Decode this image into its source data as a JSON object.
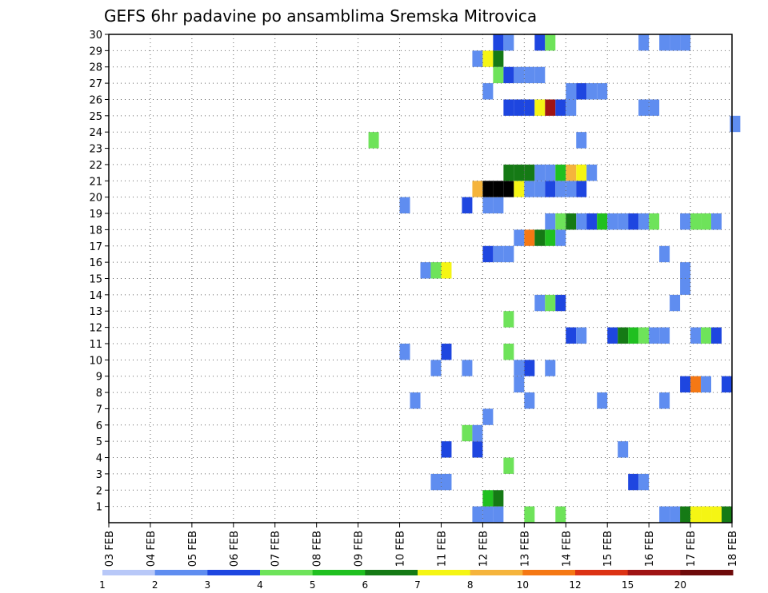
{
  "chart_data": {
    "type": "heatmap",
    "title": "GEFS 6hr padavine po ansamblima Sremska Mitrovica",
    "xlabel": "",
    "ylabel": "",
    "x_ticks": [
      "03 FEB",
      "04 FEB",
      "05 FEB",
      "06 FEB",
      "07 FEB",
      "08 FEB",
      "09 FEB",
      "10 FEB",
      "11 FEB",
      "12 FEB",
      "13 FEB",
      "14 FEB",
      "15 FEB",
      "16 FEB",
      "17 FEB",
      "18 FEB"
    ],
    "x_range_days": [
      0,
      15
    ],
    "y_ticks": [
      1,
      2,
      3,
      4,
      5,
      6,
      7,
      8,
      9,
      10,
      11,
      12,
      13,
      14,
      15,
      16,
      17,
      18,
      19,
      20,
      21,
      22,
      23,
      24,
      25,
      26,
      27,
      28,
      29,
      30
    ],
    "y_range": [
      0,
      30
    ],
    "grid": true,
    "colorbar": {
      "labels": [
        "1",
        "2",
        "3",
        "4",
        "5",
        "6",
        "7",
        "8",
        "10",
        "12",
        "15",
        "20"
      ],
      "colors": [
        "#b8c8f8",
        "#5f8df0",
        "#1e46e0",
        "#6ee35a",
        "#20c020",
        "#157a15",
        "#f5f514",
        "#f5b43c",
        "#f57814",
        "#dc3214",
        "#a01414",
        "#6e0a0a"
      ]
    },
    "cells_note": "each cell = [day_offset_from_03_FEB, ensemble_member, color_class]",
    "cells": [
      [
        8.75,
        0,
        1
      ],
      [
        9.0,
        0,
        1
      ],
      [
        9.25,
        0,
        1
      ],
      [
        10.0,
        0,
        3
      ],
      [
        10.75,
        0,
        3
      ],
      [
        13.25,
        0,
        1
      ],
      [
        13.5,
        0,
        1
      ],
      [
        13.75,
        0,
        5
      ],
      [
        14.0,
        0,
        6
      ],
      [
        14.25,
        0,
        6
      ],
      [
        14.5,
        0,
        6
      ],
      [
        14.75,
        0,
        5
      ],
      [
        9.0,
        1,
        4
      ],
      [
        9.25,
        1,
        5
      ],
      [
        7.75,
        2,
        1
      ],
      [
        8.0,
        2,
        1
      ],
      [
        12.5,
        2,
        2
      ],
      [
        12.75,
        2,
        1
      ],
      [
        9.5,
        3,
        3
      ],
      [
        8.0,
        4,
        2
      ],
      [
        8.75,
        4,
        2
      ],
      [
        12.25,
        4,
        1
      ],
      [
        8.5,
        5,
        3
      ],
      [
        8.75,
        5,
        1
      ],
      [
        9.0,
        6,
        1
      ],
      [
        7.25,
        7,
        1
      ],
      [
        10.0,
        7,
        1
      ],
      [
        11.75,
        7,
        1
      ],
      [
        13.25,
        7,
        1
      ],
      [
        9.75,
        8,
        1
      ],
      [
        13.75,
        8,
        2
      ],
      [
        14.0,
        8,
        8
      ],
      [
        14.25,
        8,
        1
      ],
      [
        14.75,
        8,
        2
      ],
      [
        7.75,
        9,
        1
      ],
      [
        8.5,
        9,
        1
      ],
      [
        9.75,
        9,
        1
      ],
      [
        10.0,
        9,
        2
      ],
      [
        10.5,
        9,
        1
      ],
      [
        7.0,
        10,
        1
      ],
      [
        8.0,
        10,
        2
      ],
      [
        9.5,
        10,
        3
      ],
      [
        11.0,
        11,
        2
      ],
      [
        11.25,
        11,
        1
      ],
      [
        12.0,
        11,
        2
      ],
      [
        12.25,
        11,
        5
      ],
      [
        12.5,
        11,
        4
      ],
      [
        12.75,
        11,
        3
      ],
      [
        13.0,
        11,
        1
      ],
      [
        13.25,
        11,
        1
      ],
      [
        14.0,
        11,
        1
      ],
      [
        14.25,
        11,
        3
      ],
      [
        14.5,
        11,
        2
      ],
      [
        9.5,
        12,
        3
      ],
      [
        10.25,
        13,
        1
      ],
      [
        10.5,
        13,
        3
      ],
      [
        10.75,
        13,
        2
      ],
      [
        13.5,
        13,
        1
      ],
      [
        13.75,
        14,
        1
      ],
      [
        7.5,
        15,
        1
      ],
      [
        7.75,
        15,
        3
      ],
      [
        8.0,
        15,
        6
      ],
      [
        13.75,
        15,
        1
      ],
      [
        9.0,
        16,
        2
      ],
      [
        9.25,
        16,
        1
      ],
      [
        9.5,
        16,
        1
      ],
      [
        13.25,
        16,
        1
      ],
      [
        9.75,
        17,
        1
      ],
      [
        10.0,
        17,
        8
      ],
      [
        10.25,
        17,
        5
      ],
      [
        10.5,
        17,
        4
      ],
      [
        10.75,
        17,
        1
      ],
      [
        10.5,
        18,
        1
      ],
      [
        10.75,
        18,
        3
      ],
      [
        11.0,
        18,
        5
      ],
      [
        11.25,
        18,
        1
      ],
      [
        11.5,
        18,
        2
      ],
      [
        11.75,
        18,
        4
      ],
      [
        12.0,
        18,
        1
      ],
      [
        12.25,
        18,
        1
      ],
      [
        12.5,
        18,
        2
      ],
      [
        12.75,
        18,
        1
      ],
      [
        13.0,
        18,
        3
      ],
      [
        13.75,
        18,
        1
      ],
      [
        14.0,
        18,
        3
      ],
      [
        14.25,
        18,
        3
      ],
      [
        14.5,
        18,
        1
      ],
      [
        7.0,
        19,
        1
      ],
      [
        8.5,
        19,
        2
      ],
      [
        9.0,
        19,
        1
      ],
      [
        9.25,
        19,
        1
      ],
      [
        8.75,
        20,
        7
      ],
      [
        9.0,
        20,
        12
      ],
      [
        9.25,
        20,
        12
      ],
      [
        9.5,
        20,
        12
      ],
      [
        9.75,
        20,
        6
      ],
      [
        10.0,
        20,
        1
      ],
      [
        10.25,
        20,
        1
      ],
      [
        10.5,
        20,
        2
      ],
      [
        10.75,
        20,
        1
      ],
      [
        11.0,
        20,
        1
      ],
      [
        11.25,
        20,
        2
      ],
      [
        9.5,
        21,
        5
      ],
      [
        9.75,
        21,
        5
      ],
      [
        10.0,
        21,
        5
      ],
      [
        10.25,
        21,
        1
      ],
      [
        10.5,
        21,
        1
      ],
      [
        10.75,
        21,
        4
      ],
      [
        11.0,
        21,
        7
      ],
      [
        11.25,
        21,
        6
      ],
      [
        11.5,
        21,
        1
      ],
      [
        6.25,
        23,
        3
      ],
      [
        11.25,
        23,
        1
      ],
      [
        14.95,
        24,
        1
      ],
      [
        9.5,
        25,
        2
      ],
      [
        9.75,
        25,
        2
      ],
      [
        10.0,
        25,
        2
      ],
      [
        10.25,
        25,
        6
      ],
      [
        10.5,
        25,
        10
      ],
      [
        10.75,
        25,
        2
      ],
      [
        11.0,
        25,
        1
      ],
      [
        12.75,
        25,
        1
      ],
      [
        13.0,
        25,
        1
      ],
      [
        9.0,
        26,
        1
      ],
      [
        11.0,
        26,
        1
      ],
      [
        11.25,
        26,
        2
      ],
      [
        11.5,
        26,
        1
      ],
      [
        11.75,
        26,
        1
      ],
      [
        9.25,
        27,
        3
      ],
      [
        9.5,
        27,
        2
      ],
      [
        9.75,
        27,
        1
      ],
      [
        10.0,
        27,
        1
      ],
      [
        10.25,
        27,
        1
      ],
      [
        8.75,
        28,
        1
      ],
      [
        9.0,
        28,
        6
      ],
      [
        9.25,
        28,
        5
      ],
      [
        9.25,
        29,
        2
      ],
      [
        9.5,
        29,
        1
      ],
      [
        10.25,
        29,
        2
      ],
      [
        10.5,
        29,
        3
      ],
      [
        12.75,
        29,
        1
      ],
      [
        13.25,
        29,
        1
      ],
      [
        13.5,
        29,
        1
      ],
      [
        13.75,
        29,
        1
      ]
    ]
  }
}
